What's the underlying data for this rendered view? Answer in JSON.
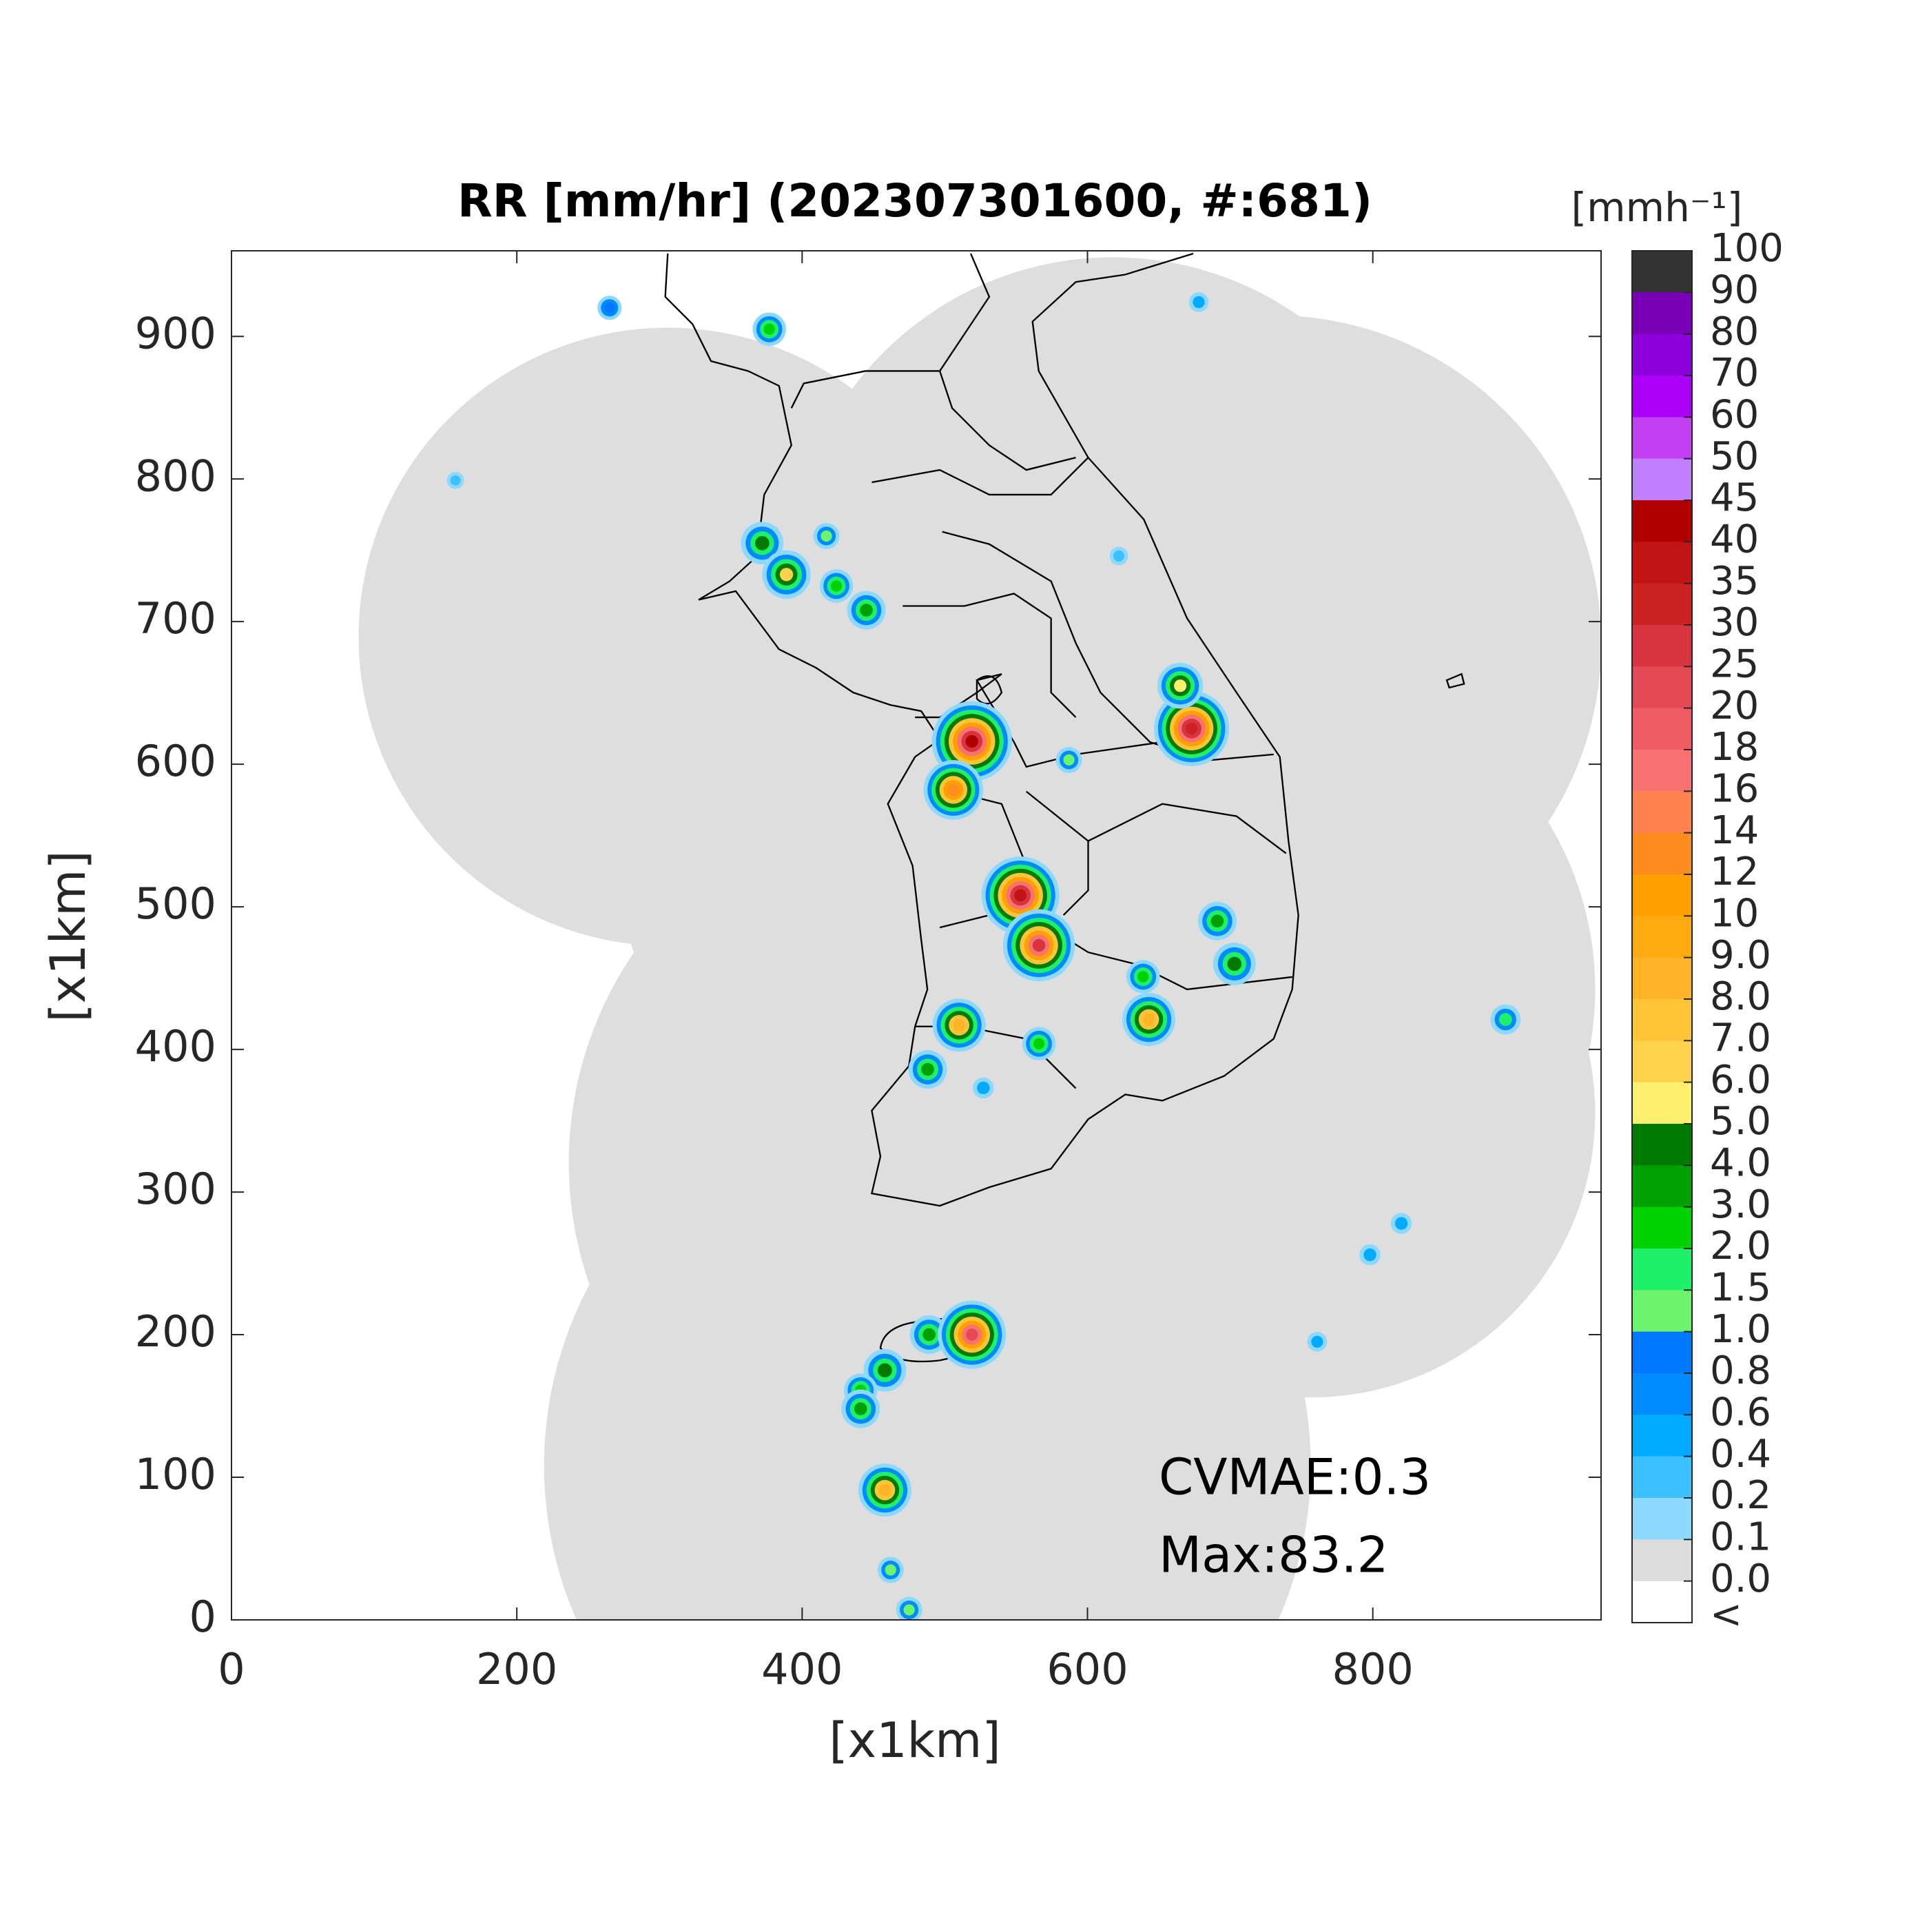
{
  "chart_data": {
    "type": "map",
    "title": "RR [mm/hr] (202307301600, #:681)",
    "x_label": "[x1km]",
    "y_label": "[x1km]",
    "xlim": [
      0,
      960
    ],
    "ylim": [
      0,
      960
    ],
    "xticks": [
      0,
      200,
      400,
      600,
      800
    ],
    "yticks": [
      0,
      100,
      200,
      300,
      400,
      500,
      600,
      700,
      800,
      900
    ],
    "annotations": [
      "CVMAE:0.3",
      "Max:83.2"
    ],
    "colorbar": {
      "title": "[mmh⁻¹]",
      "ticks": [
        100,
        90,
        80,
        70,
        60,
        50,
        45,
        40,
        35,
        30,
        25,
        20,
        18,
        16,
        14,
        12,
        10,
        {
          "value": 9,
          "label": "9.0"
        },
        {
          "value": 8,
          "label": "8.0"
        },
        {
          "value": 7,
          "label": "7.0"
        },
        {
          "value": 6,
          "label": "6.0"
        },
        {
          "value": 5,
          "label": "5.0"
        },
        {
          "value": 4,
          "label": "4.0"
        },
        {
          "value": 3,
          "label": "3.0"
        },
        {
          "value": 2,
          "label": "2.0"
        },
        1.5,
        {
          "value": 1,
          "label": "1.0"
        },
        0.8,
        0.6,
        0.4,
        0.2,
        0.1,
        {
          "value": 0,
          "label": "0.0"
        }
      ],
      "colors": [
        "#333333",
        "#7a00b8",
        "#8c00dc",
        "#aa00f8",
        "#c040f2",
        "#c080ff",
        "#b00000",
        "#c21414",
        "#cc2222",
        "#d83440",
        "#e44a56",
        "#f05c64",
        "#f87272",
        "#ff8250",
        "#ff8c1e",
        "#ffa000",
        "#ffaa10",
        "#ffb428",
        "#ffc438",
        "#ffd24c",
        "#fff070",
        "#007a00",
        "#00a000",
        "#00d200",
        "#1ef06a",
        "#6cf46c",
        "#0078ff",
        "#008cff",
        "#00aaff",
        "#3cc0ff",
        "#8cd8ff",
        "#dcdcdc"
      ],
      "under_color": "#ffffff",
      "under_label": "<"
    },
    "echoes": {
      "x": [
        519,
        506,
        553,
        566,
        673,
        665,
        372,
        389,
        424,
        445,
        417,
        489,
        519,
        458,
        458,
        462,
        475,
        643,
        639,
        691,
        820,
        798,
        678,
        265,
        377,
        893,
        761,
        488,
        510,
        566,
        527,
        441,
        441,
        622,
        157,
        703,
        587
      ],
      "y": [
        616,
        582,
        508,
        473,
        625,
        655,
        755,
        733,
        725,
        708,
        760,
        200,
        200,
        175,
        91,
        35,
        7,
        421,
        451,
        490,
        278,
        256,
        924,
        920,
        905,
        421,
        195,
        386,
        417,
        404,
        373,
        161,
        148,
        746,
        799,
        460,
        603
      ],
      "rate": [
        40,
        12,
        35,
        25,
        30,
        5,
        4,
        6,
        2,
        3,
        1,
        3,
        20,
        4,
        8,
        1,
        1,
        8,
        2,
        3,
        0.5,
        0.5,
        0.4,
        0.8,
        2,
        1.5,
        0.4,
        3,
        8,
        2,
        0.5,
        2,
        3,
        0.3,
        0.2,
        4,
        1
      ]
    }
  }
}
